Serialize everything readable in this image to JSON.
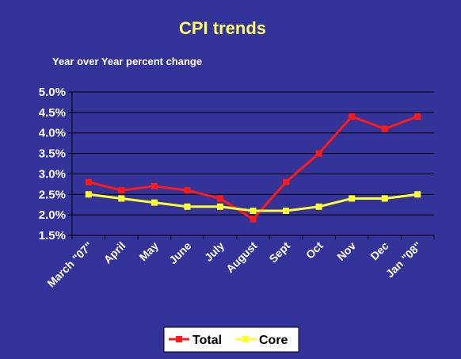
{
  "chart_data": {
    "type": "line",
    "title": "CPI trends",
    "subtitle": "Year over Year percent change",
    "categories": [
      "March \"07\"",
      "April",
      "May",
      "June",
      "July",
      "August",
      "Sept",
      "Oct",
      "Nov",
      "Dec",
      "Jan \"08\""
    ],
    "y_ticks": [
      "5.0%",
      "4.5%",
      "4.0%",
      "3.5%",
      "3.0%",
      "2.5%",
      "2.0%",
      "1.5%"
    ],
    "ylim": [
      1.5,
      5.0
    ],
    "grid": true,
    "legend_position": "bottom",
    "series": [
      {
        "name": "Total",
        "color": "#ff1a1a",
        "values": [
          2.8,
          2.6,
          2.7,
          2.6,
          2.4,
          1.9,
          2.8,
          3.5,
          4.4,
          4.1,
          4.4
        ]
      },
      {
        "name": "Core",
        "color": "#ffff33",
        "values": [
          2.5,
          2.4,
          2.3,
          2.2,
          2.2,
          2.1,
          2.1,
          2.2,
          2.4,
          2.4,
          2.5
        ]
      }
    ]
  }
}
